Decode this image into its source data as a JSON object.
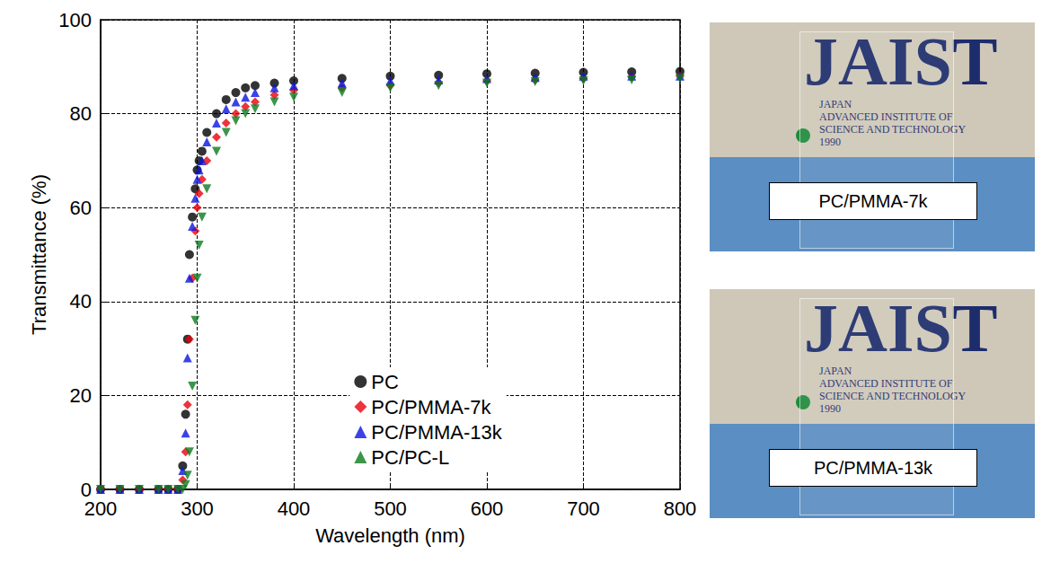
{
  "chart_data": {
    "type": "scatter",
    "x_label": "Wavelength (nm)",
    "y_label": "Transmittance (%)",
    "xlim": [
      200,
      800
    ],
    "xticks": [
      200,
      300,
      400,
      500,
      600,
      700,
      800
    ],
    "ylim": [
      0,
      100
    ],
    "yticks": [
      0,
      20,
      40,
      60,
      80,
      100
    ],
    "grid": true,
    "legend": "lower center",
    "x": [
      200,
      220,
      240,
      260,
      270,
      280,
      285,
      288,
      290,
      292,
      295,
      298,
      300,
      302,
      305,
      310,
      320,
      330,
      340,
      350,
      360,
      380,
      400,
      450,
      500,
      550,
      600,
      650,
      700,
      750,
      800
    ],
    "series": [
      {
        "name": "PC",
        "color": "#000000",
        "marker": "circle",
        "values": [
          0,
          0,
          0,
          0,
          0,
          0,
          5,
          16,
          32,
          50,
          58,
          64,
          68,
          70,
          72,
          76,
          80,
          83,
          84.5,
          85.5,
          86,
          86.5,
          87,
          87.5,
          88,
          88.2,
          88.5,
          88.6,
          88.8,
          88.9,
          89
        ]
      },
      {
        "name": "PC/PMMA-7k",
        "color": "#e8000b",
        "marker": "diamond",
        "values": [
          0,
          0,
          0,
          0,
          0,
          0,
          2,
          8,
          18,
          32,
          45,
          55,
          60,
          63,
          66,
          70,
          75,
          78,
          80,
          81.5,
          82.5,
          84,
          85,
          85.5,
          86,
          86.5,
          87,
          87.2,
          87.5,
          87.8,
          88
        ]
      },
      {
        "name": "PC/PMMA-13k",
        "color": "#0a14e0",
        "marker": "triangle",
        "values": [
          0,
          0,
          0,
          0,
          0,
          0,
          4,
          12,
          28,
          45,
          56,
          62,
          66,
          68,
          70,
          74,
          78,
          81,
          82.5,
          83.5,
          84.5,
          85.5,
          86,
          86.5,
          87,
          87.2,
          87.5,
          87.7,
          88,
          88,
          88
        ]
      },
      {
        "name": "PC/PC-L",
        "color": "#0b7a1e",
        "marker": "triangle_down",
        "values": [
          0,
          0,
          0,
          0,
          0,
          0,
          0,
          1,
          3,
          8,
          22,
          36,
          45,
          52,
          58,
          64,
          72,
          76,
          78.5,
          80,
          81,
          82.5,
          83.5,
          84.5,
          85.5,
          86,
          86.5,
          86.8,
          87,
          87.2,
          87.5
        ]
      }
    ]
  },
  "photos": [
    {
      "caption": "PC/PMMA-7k",
      "logo": "JAIST",
      "logo_lines": [
        "JAPAN",
        "ADVANCED INSTITUTE OF",
        "SCIENCE AND TECHNOLOGY",
        "1990"
      ]
    },
    {
      "caption": "PC/PMMA-13k",
      "logo": "JAIST",
      "logo_lines": [
        "JAPAN",
        "ADVANCED INSTITUTE OF",
        "SCIENCE AND TECHNOLOGY",
        "1990"
      ]
    }
  ]
}
